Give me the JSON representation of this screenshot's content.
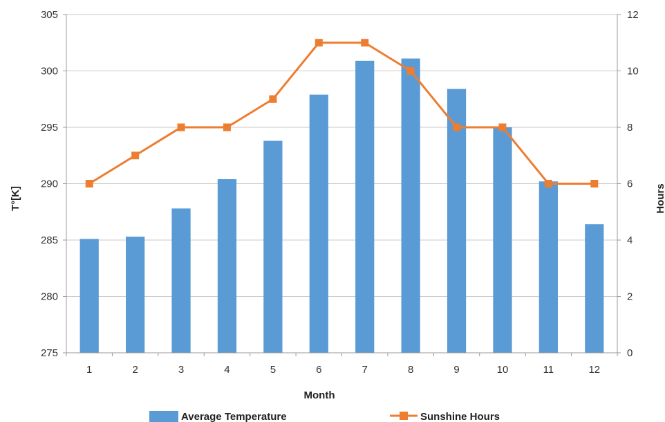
{
  "chart_data": {
    "type": "bar",
    "categories": [
      "1",
      "2",
      "3",
      "4",
      "5",
      "6",
      "7",
      "8",
      "9",
      "10",
      "11",
      "12"
    ],
    "series": [
      {
        "name": "Average Temperature",
        "type": "bar",
        "axis": "left",
        "values": [
          285.1,
          285.3,
          287.8,
          290.4,
          293.8,
          297.9,
          300.9,
          301.1,
          298.4,
          295.0,
          290.2,
          286.4
        ],
        "color": "#5B9BD5"
      },
      {
        "name": "Sunshine Hours",
        "type": "line",
        "axis": "right",
        "marker": "square",
        "values": [
          6,
          7,
          8,
          8,
          9,
          11,
          11,
          10,
          8,
          8,
          6,
          6
        ],
        "color": "#ED7D31"
      }
    ],
    "xlabel": "Month",
    "ylabel": "T°[K]",
    "y2label": "Hours",
    "ylim": [
      275,
      305
    ],
    "yticks": [
      "275",
      "280",
      "285",
      "290",
      "295",
      "300",
      "305"
    ],
    "y2lim": [
      0,
      12
    ],
    "y2ticks": [
      "0",
      "2",
      "4",
      "6",
      "8",
      "10",
      "12"
    ],
    "grid": true,
    "legend": "bottom"
  }
}
